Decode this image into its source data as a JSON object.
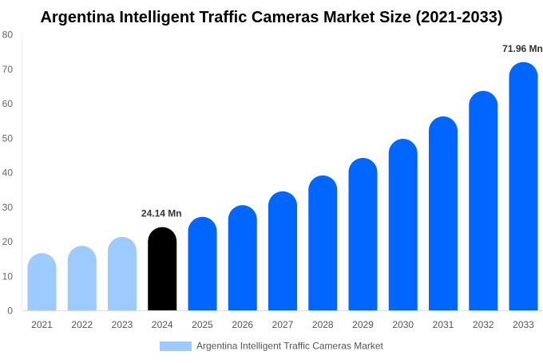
{
  "chart_data": {
    "type": "bar",
    "title": "Argentina Intelligent Traffic Cameras Market Size (2021-2033)",
    "xlabel": "",
    "ylabel": "",
    "ylim": [
      0,
      80
    ],
    "yticks": [
      0,
      10,
      20,
      30,
      40,
      50,
      60,
      70,
      80
    ],
    "grid": false,
    "legend_position": "bottom",
    "categories": [
      "2021",
      "2022",
      "2023",
      "2024",
      "2025",
      "2026",
      "2027",
      "2028",
      "2029",
      "2030",
      "2031",
      "2032",
      "2033"
    ],
    "series": [
      {
        "name": "Argentina Intelligent Traffic Cameras Market",
        "values": [
          16.6,
          18.7,
          21.3,
          24.14,
          27.1,
          30.5,
          34.5,
          39.1,
          44.2,
          49.7,
          56.2,
          63.6,
          71.96
        ]
      }
    ],
    "bar_colors": [
      "#9ecbff",
      "#9ecbff",
      "#9ecbff",
      "#000000",
      "#0066ff",
      "#0066ff",
      "#0066ff",
      "#0066ff",
      "#0066ff",
      "#0066ff",
      "#0066ff",
      "#0066ff",
      "#0066ff"
    ],
    "legend_color": "#9ecbff",
    "data_labels": [
      {
        "category": "2024",
        "text": "24.14 Mn"
      },
      {
        "category": "2033",
        "text": "71.96 Mn"
      }
    ]
  }
}
